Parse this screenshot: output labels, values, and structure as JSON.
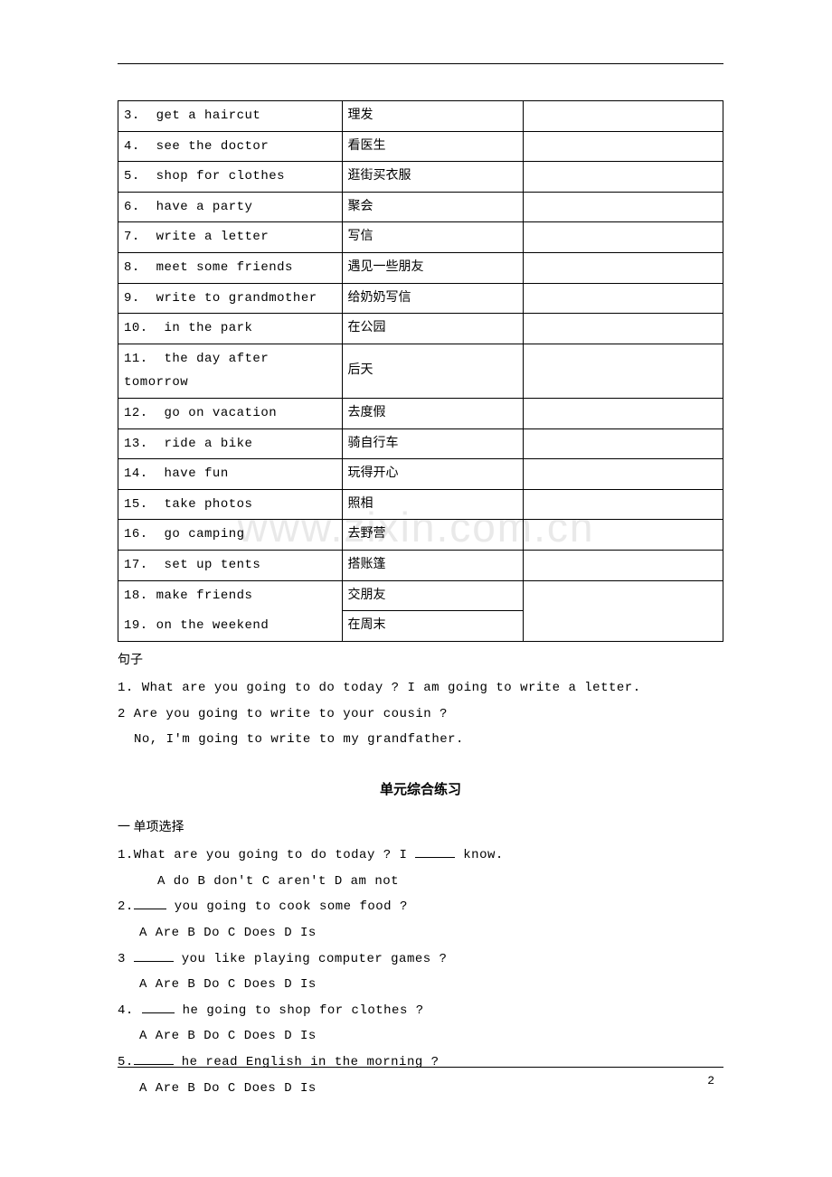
{
  "vocab_rows": [
    {
      "num": "3.",
      "en": "get a haircut",
      "zh": "理发"
    },
    {
      "num": "4.",
      "en": "see the doctor",
      "zh": "看医生"
    },
    {
      "num": "5.",
      "en": "shop for clothes",
      "zh": "逛街买衣服"
    },
    {
      "num": "6.",
      "en": "have a party",
      "zh": "聚会"
    },
    {
      "num": "7.",
      "en": "write a letter",
      "zh": "写信"
    },
    {
      "num": "8.",
      "en": "meet some friends",
      "zh": "遇见一些朋友"
    },
    {
      "num": "9.",
      "en": "write to grandmother",
      "zh": "给奶奶写信"
    },
    {
      "num": "10.",
      "en": "in the park",
      "zh": "在公园"
    },
    {
      "num": "11.",
      "en": "the day after tomorrow",
      "zh": "后天"
    },
    {
      "num": "12.",
      "en": "go on vacation",
      "zh": "去度假"
    },
    {
      "num": "13.",
      "en": "ride a bike",
      "zh": "骑自行车"
    },
    {
      "num": "14.",
      "en": "have fun",
      "zh": "玩得开心"
    },
    {
      "num": "15.",
      "en": "take photos",
      "zh": "照相"
    },
    {
      "num": "16.",
      "en": "go camping",
      "zh": "去野营"
    },
    {
      "num": "17.",
      "en": "set up tents",
      "zh": "搭账篷"
    }
  ],
  "vocab_last": {
    "row_a": {
      "num": "18.",
      "en": "make friends",
      "zh": "交朋友"
    },
    "row_b": {
      "num": "19.",
      "en": "on the weekend",
      "zh": "在周末"
    }
  },
  "labels": {
    "sentences_header": "句子",
    "exercise_title": "单元综合练习",
    "section_one": "一 单项选择"
  },
  "sentences": {
    "s1": "1. What are you going to do today ? I am going to write a letter.",
    "s2": "2 Are you going to write to your cousin ?",
    "s2b": "No, I'm going to write to my grandfather."
  },
  "exercises": [
    {
      "q_pre": "1.What are you going to do today ? I ",
      "q_post": " know.",
      "blank_w": 44,
      "opts": "A do    B don't   C aren't   D am not",
      "opts_indent": 44
    },
    {
      "q_pre": "2.",
      "q_post": " you going to cook some food ?",
      "blank_w": 36,
      "opts": "A Are    B Do    C Does    D Is",
      "opts_indent": 24
    },
    {
      "q_pre": "3 ",
      "q_post": " you like playing computer games ?",
      "blank_w": 44,
      "opts": "A Are    B Do    C Does    D Is",
      "opts_indent": 24
    },
    {
      "q_pre": "4. ",
      "q_post": " he going to shop for clothes ?",
      "blank_w": 36,
      "opts": "A Are    B Do    C Does    D Is",
      "opts_indent": 24
    },
    {
      "q_pre": "5.",
      "q_post": " he read English in the morning ?",
      "blank_w": 44,
      "opts": "A Are    B Do    C Does    D Is",
      "opts_indent": 24
    }
  ],
  "watermark_text": "www.zixin.com.cn",
  "page_number": "2"
}
